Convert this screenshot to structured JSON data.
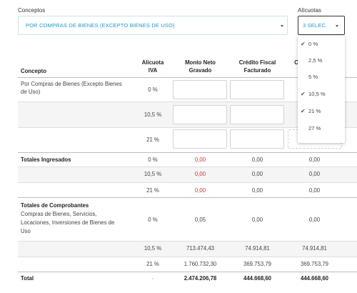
{
  "conceptos": {
    "label": "Conceptos",
    "value": "POR COMPRAS DE BIENES (EXCEPTO BIENES DE USO)"
  },
  "alicuotas": {
    "label": "Alícuotas",
    "value": "3 SELEC.",
    "options": [
      {
        "label": "0 %",
        "checked": true
      },
      {
        "label": "2,5 %",
        "checked": false
      },
      {
        "label": "5 %",
        "checked": false
      },
      {
        "label": "10,5 %",
        "checked": true
      },
      {
        "label": "21 %",
        "checked": true
      },
      {
        "label": "27 %",
        "checked": false
      }
    ]
  },
  "table": {
    "headers": {
      "concepto": "Concepto",
      "alicuota_1": "Alícuota",
      "alicuota_2": "IVA",
      "monto_1": "Monto Neto",
      "monto_2": "Gravado",
      "credito_1": "Crédito Fiscal",
      "credito_2": "Facturado",
      "partial": "C"
    },
    "input_rows": [
      {
        "concepto_1": "Por Compras de Bienes (Excepto Bienes",
        "concepto_2": "de Uso)",
        "rate": "0 %"
      },
      {
        "rate": "10,5 %"
      },
      {
        "rate": "21 %"
      }
    ],
    "totales_ingresados": {
      "title": "Totales Ingresados",
      "rows": [
        {
          "rate": "0 %",
          "monto": "0,00",
          "credito": "0,00",
          "col4": "0,00"
        },
        {
          "rate": "10,5 %",
          "monto": "0,00",
          "credito": "0,00",
          "col4": "0,00"
        },
        {
          "rate": "21 %",
          "monto": "0,00",
          "credito": "0,00",
          "col4": "0,00"
        }
      ]
    },
    "totales_comprobantes": {
      "title": "Totales de Comprobantes",
      "desc_1": "Compras de Bienes, Servicios,",
      "desc_2": "Locaciones, Inversiones de Bienes de",
      "desc_3": "Uso",
      "rows": [
        {
          "rate": "0 %",
          "monto": "0,05",
          "credito": "0,00",
          "col4": "0,00"
        },
        {
          "rate": "10,5 %",
          "monto": "713.474,43",
          "credito": "74.914,81",
          "col4": "74.914,81"
        },
        {
          "rate": "21 %",
          "monto": "1.760.732,30",
          "credito": "369.753,79",
          "col4": "369.753,79"
        }
      ]
    },
    "total": {
      "label": "Total",
      "rate": "-",
      "monto": "2.474.206,78",
      "credito": "444.668,60",
      "col4": "444.668,60"
    }
  },
  "colors": {
    "accent": "#1f9bc1",
    "negative": "#d0342c"
  }
}
